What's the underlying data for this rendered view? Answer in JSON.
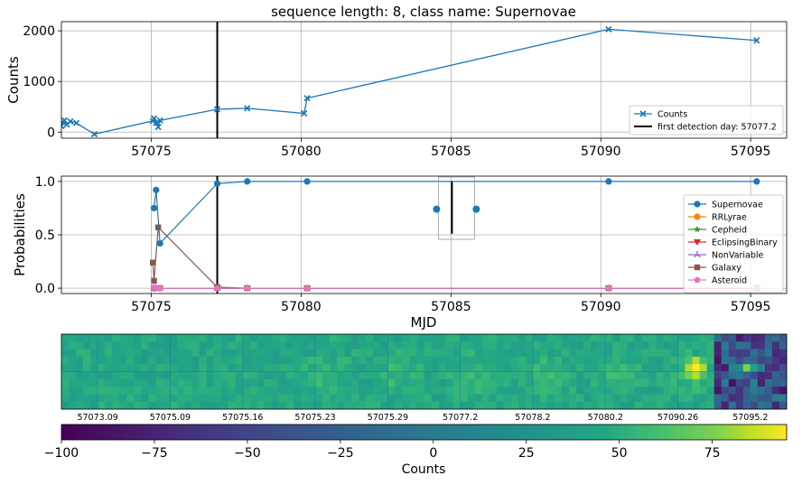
{
  "figure_title": "sequence length: 8, class name: Supernovae",
  "chart_data": [
    {
      "type": "line",
      "panel": "light-curve",
      "xlim": [
        57072.0,
        57096.2
      ],
      "ylim": [
        -120,
        2180
      ],
      "x_ticks": [
        57075,
        57080,
        57085,
        57090,
        57095
      ],
      "y_ticks": [
        0,
        1000,
        2000
      ],
      "xlabel": "",
      "ylabel": "Counts",
      "grid": true,
      "legend_position": "lower-right",
      "vline": {
        "x": 57077.2,
        "label": "first detection day: 57077.2",
        "color": "#000000"
      },
      "series": [
        {
          "name": "Counts",
          "color": "#1f77b4",
          "marker": "x-filled",
          "points": [
            [
              57072.0,
              120
            ],
            [
              57072.03,
              200
            ],
            [
              57072.1,
              230
            ],
            [
              57072.18,
              150
            ],
            [
              57072.3,
              210
            ],
            [
              57072.5,
              180
            ],
            [
              57073.1,
              -40
            ],
            [
              57075.05,
              220
            ],
            [
              57075.09,
              270
            ],
            [
              57075.16,
              180
            ],
            [
              57075.23,
              100
            ],
            [
              57075.29,
              230
            ],
            [
              57077.2,
              450
            ],
            [
              57078.2,
              470
            ],
            [
              57080.1,
              370
            ],
            [
              57080.2,
              670
            ],
            [
              57090.26,
              2030
            ],
            [
              57095.2,
              1810
            ]
          ]
        }
      ]
    },
    {
      "type": "line",
      "panel": "class-probabilities",
      "xlim": [
        57072.0,
        57096.2
      ],
      "ylim": [
        -0.05,
        1.05
      ],
      "x_ticks": [
        57075,
        57080,
        57085,
        57090,
        57095
      ],
      "y_ticks": [
        0.0,
        0.5,
        1.0
      ],
      "xlabel": "MJD",
      "ylabel": "Probabilities",
      "grid": true,
      "legend_position": "right",
      "vline": {
        "x": 57077.2,
        "color": "#000000"
      },
      "series": [
        {
          "name": "Supernovae",
          "color": "#1f77b4",
          "marker": "circle",
          "points": [
            [
              57075.09,
              0.75
            ],
            [
              57075.16,
              0.92
            ],
            [
              57075.29,
              0.42
            ],
            [
              57077.2,
              0.98
            ],
            [
              57078.2,
              1.0
            ],
            [
              57080.2,
              1.0
            ],
            [
              57090.26,
              1.0
            ],
            [
              57095.2,
              1.0
            ]
          ]
        },
        {
          "name": "RRLyrae",
          "color": "#ff7f0e",
          "marker": "circle",
          "points": [
            [
              57075.09,
              0.0
            ],
            [
              57075.16,
              0.0
            ],
            [
              57075.29,
              0.0
            ],
            [
              57077.2,
              0.0
            ],
            [
              57078.2,
              0.0
            ],
            [
              57080.2,
              0.0
            ],
            [
              57090.26,
              0.0
            ],
            [
              57095.2,
              0.0
            ]
          ]
        },
        {
          "name": "Cepheid",
          "color": "#2ca02c",
          "marker": "star",
          "points": [
            [
              57075.09,
              0.0
            ],
            [
              57075.16,
              0.0
            ],
            [
              57075.29,
              0.0
            ],
            [
              57077.2,
              0.0
            ],
            [
              57078.2,
              0.0
            ],
            [
              57080.2,
              0.0
            ],
            [
              57090.26,
              0.0
            ],
            [
              57095.2,
              0.0
            ]
          ]
        },
        {
          "name": "EclipsingBinary",
          "color": "#d62728",
          "marker": "triangle-down",
          "points": [
            [
              57075.09,
              0.0
            ],
            [
              57075.16,
              0.0
            ],
            [
              57075.29,
              0.0
            ],
            [
              57077.2,
              0.0
            ],
            [
              57078.2,
              0.0
            ],
            [
              57080.2,
              0.0
            ],
            [
              57090.26,
              0.0
            ],
            [
              57095.2,
              0.0
            ]
          ]
        },
        {
          "name": "NonVariable",
          "color": "#9467bd",
          "marker": "tri-up",
          "points": [
            [
              57075.09,
              0.0
            ],
            [
              57075.16,
              0.0
            ],
            [
              57075.29,
              0.0
            ],
            [
              57077.2,
              0.0
            ],
            [
              57078.2,
              0.0
            ],
            [
              57080.2,
              0.0
            ],
            [
              57090.26,
              0.0
            ],
            [
              57095.2,
              0.0
            ]
          ]
        },
        {
          "name": "Galaxy",
          "color": "#8c564b",
          "marker": "square",
          "points": [
            [
              57075.05,
              0.24
            ],
            [
              57075.09,
              0.07
            ],
            [
              57075.23,
              0.57
            ],
            [
              57077.2,
              0.01
            ],
            [
              57078.2,
              0.0
            ],
            [
              57080.2,
              0.0
            ],
            [
              57090.26,
              0.0
            ],
            [
              57095.2,
              0.0
            ]
          ]
        },
        {
          "name": "Asteroid",
          "color": "#e377c2",
          "marker": "pentagon",
          "points": [
            [
              57075.09,
              0.01
            ],
            [
              57075.16,
              0.0
            ],
            [
              57075.29,
              0.0
            ],
            [
              57077.2,
              0.0
            ],
            [
              57078.2,
              0.0
            ],
            [
              57080.2,
              0.0
            ],
            [
              57090.26,
              0.0
            ],
            [
              57095.2,
              0.0
            ]
          ]
        }
      ],
      "inset_legend": {
        "x_center": 57085.0,
        "points_y": [
          0.74,
          0.74
        ],
        "bar": [
          0.51,
          1.0
        ]
      }
    },
    {
      "type": "heatmap",
      "panel": "image-stamps",
      "stamp_labels": [
        "57073.09",
        "57075.09",
        "57075.16",
        "57075.23",
        "57075.29",
        "57077.2",
        "57078.2",
        "57080.2",
        "57090.26",
        "57095.2"
      ],
      "colormap": "viridis",
      "colorbar": {
        "label": "Counts",
        "min": -100,
        "max": 95,
        "ticks": [
          -100,
          -75,
          -50,
          -25,
          0,
          25,
          50,
          75
        ]
      }
    }
  ]
}
